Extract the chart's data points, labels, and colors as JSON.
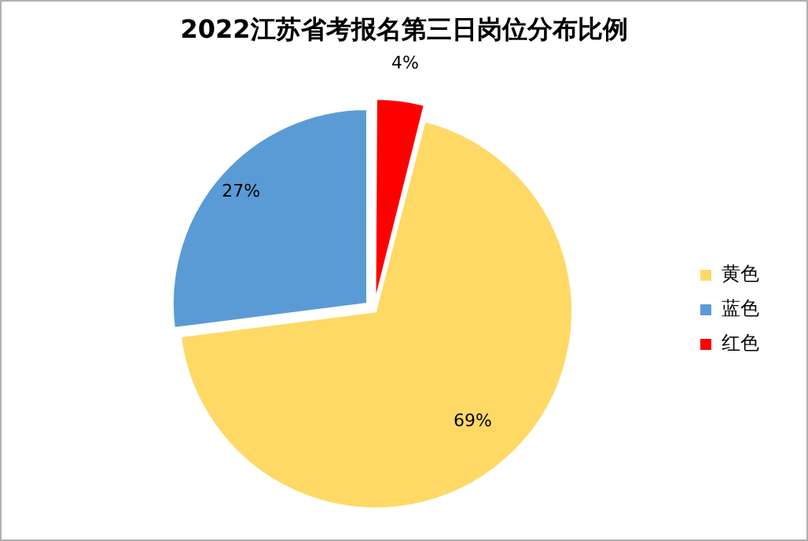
{
  "chart_data": {
    "type": "pie",
    "title": "2022江苏省考报名第三日岗位分布比例",
    "categories": [
      "黄色",
      "蓝色",
      "红色"
    ],
    "values": [
      69,
      27,
      4
    ],
    "colors": [
      "#ffd966",
      "#5b9bd5",
      "#ff0000"
    ],
    "value_labels": [
      "69%",
      "27%",
      "4%"
    ],
    "legend": "right"
  }
}
